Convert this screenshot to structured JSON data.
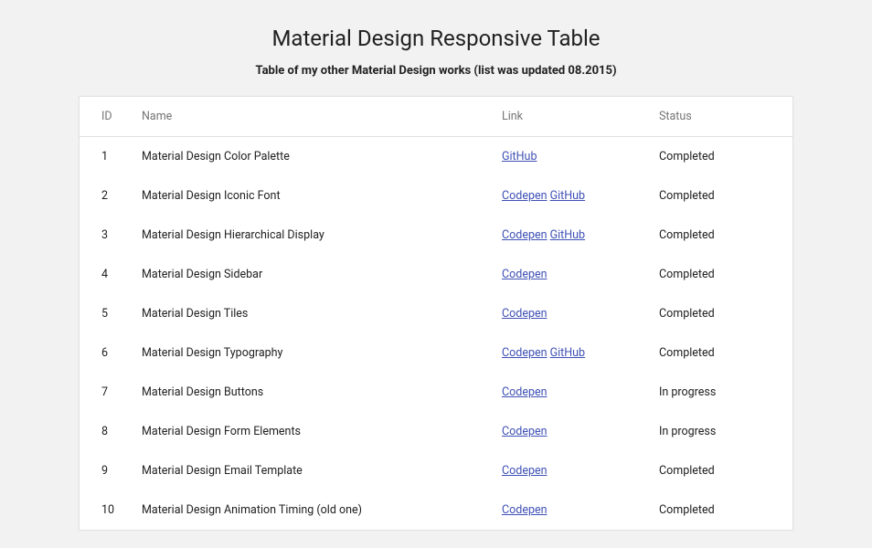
{
  "header": {
    "title": "Material Design Responsive Table",
    "subtitle": "Table of my other Material Design works (list was updated 08.2015)"
  },
  "table": {
    "columns": {
      "id": "ID",
      "name": "Name",
      "link": "Link",
      "status": "Status"
    },
    "rows": [
      {
        "id": "1",
        "name": "Material Design Color Palette",
        "links": [
          "GitHub"
        ],
        "status": "Completed"
      },
      {
        "id": "2",
        "name": "Material Design Iconic Font",
        "links": [
          "Codepen",
          "GitHub"
        ],
        "status": "Completed"
      },
      {
        "id": "3",
        "name": "Material Design Hierarchical Display",
        "links": [
          "Codepen",
          "GitHub"
        ],
        "status": "Completed"
      },
      {
        "id": "4",
        "name": "Material Design Sidebar",
        "links": [
          "Codepen"
        ],
        "status": "Completed"
      },
      {
        "id": "5",
        "name": "Material Design Tiles",
        "links": [
          "Codepen"
        ],
        "status": "Completed"
      },
      {
        "id": "6",
        "name": "Material Design Typography",
        "links": [
          "Codepen",
          "GitHub"
        ],
        "status": "Completed"
      },
      {
        "id": "7",
        "name": "Material Design Buttons",
        "links": [
          "Codepen"
        ],
        "status": "In progress"
      },
      {
        "id": "8",
        "name": "Material Design Form Elements",
        "links": [
          "Codepen"
        ],
        "status": "In progress"
      },
      {
        "id": "9",
        "name": "Material Design Email Template",
        "links": [
          "Codepen"
        ],
        "status": "Completed"
      },
      {
        "id": "10",
        "name": "Material Design Animation Timing (old one)",
        "links": [
          "Codepen"
        ],
        "status": "Completed"
      }
    ]
  },
  "colors": {
    "page_bg": "#f2f2f2",
    "card_bg": "#ffffff",
    "border": "#e0e0e0",
    "text": "#212121",
    "muted": "#757575",
    "link": "#3f51b5"
  }
}
